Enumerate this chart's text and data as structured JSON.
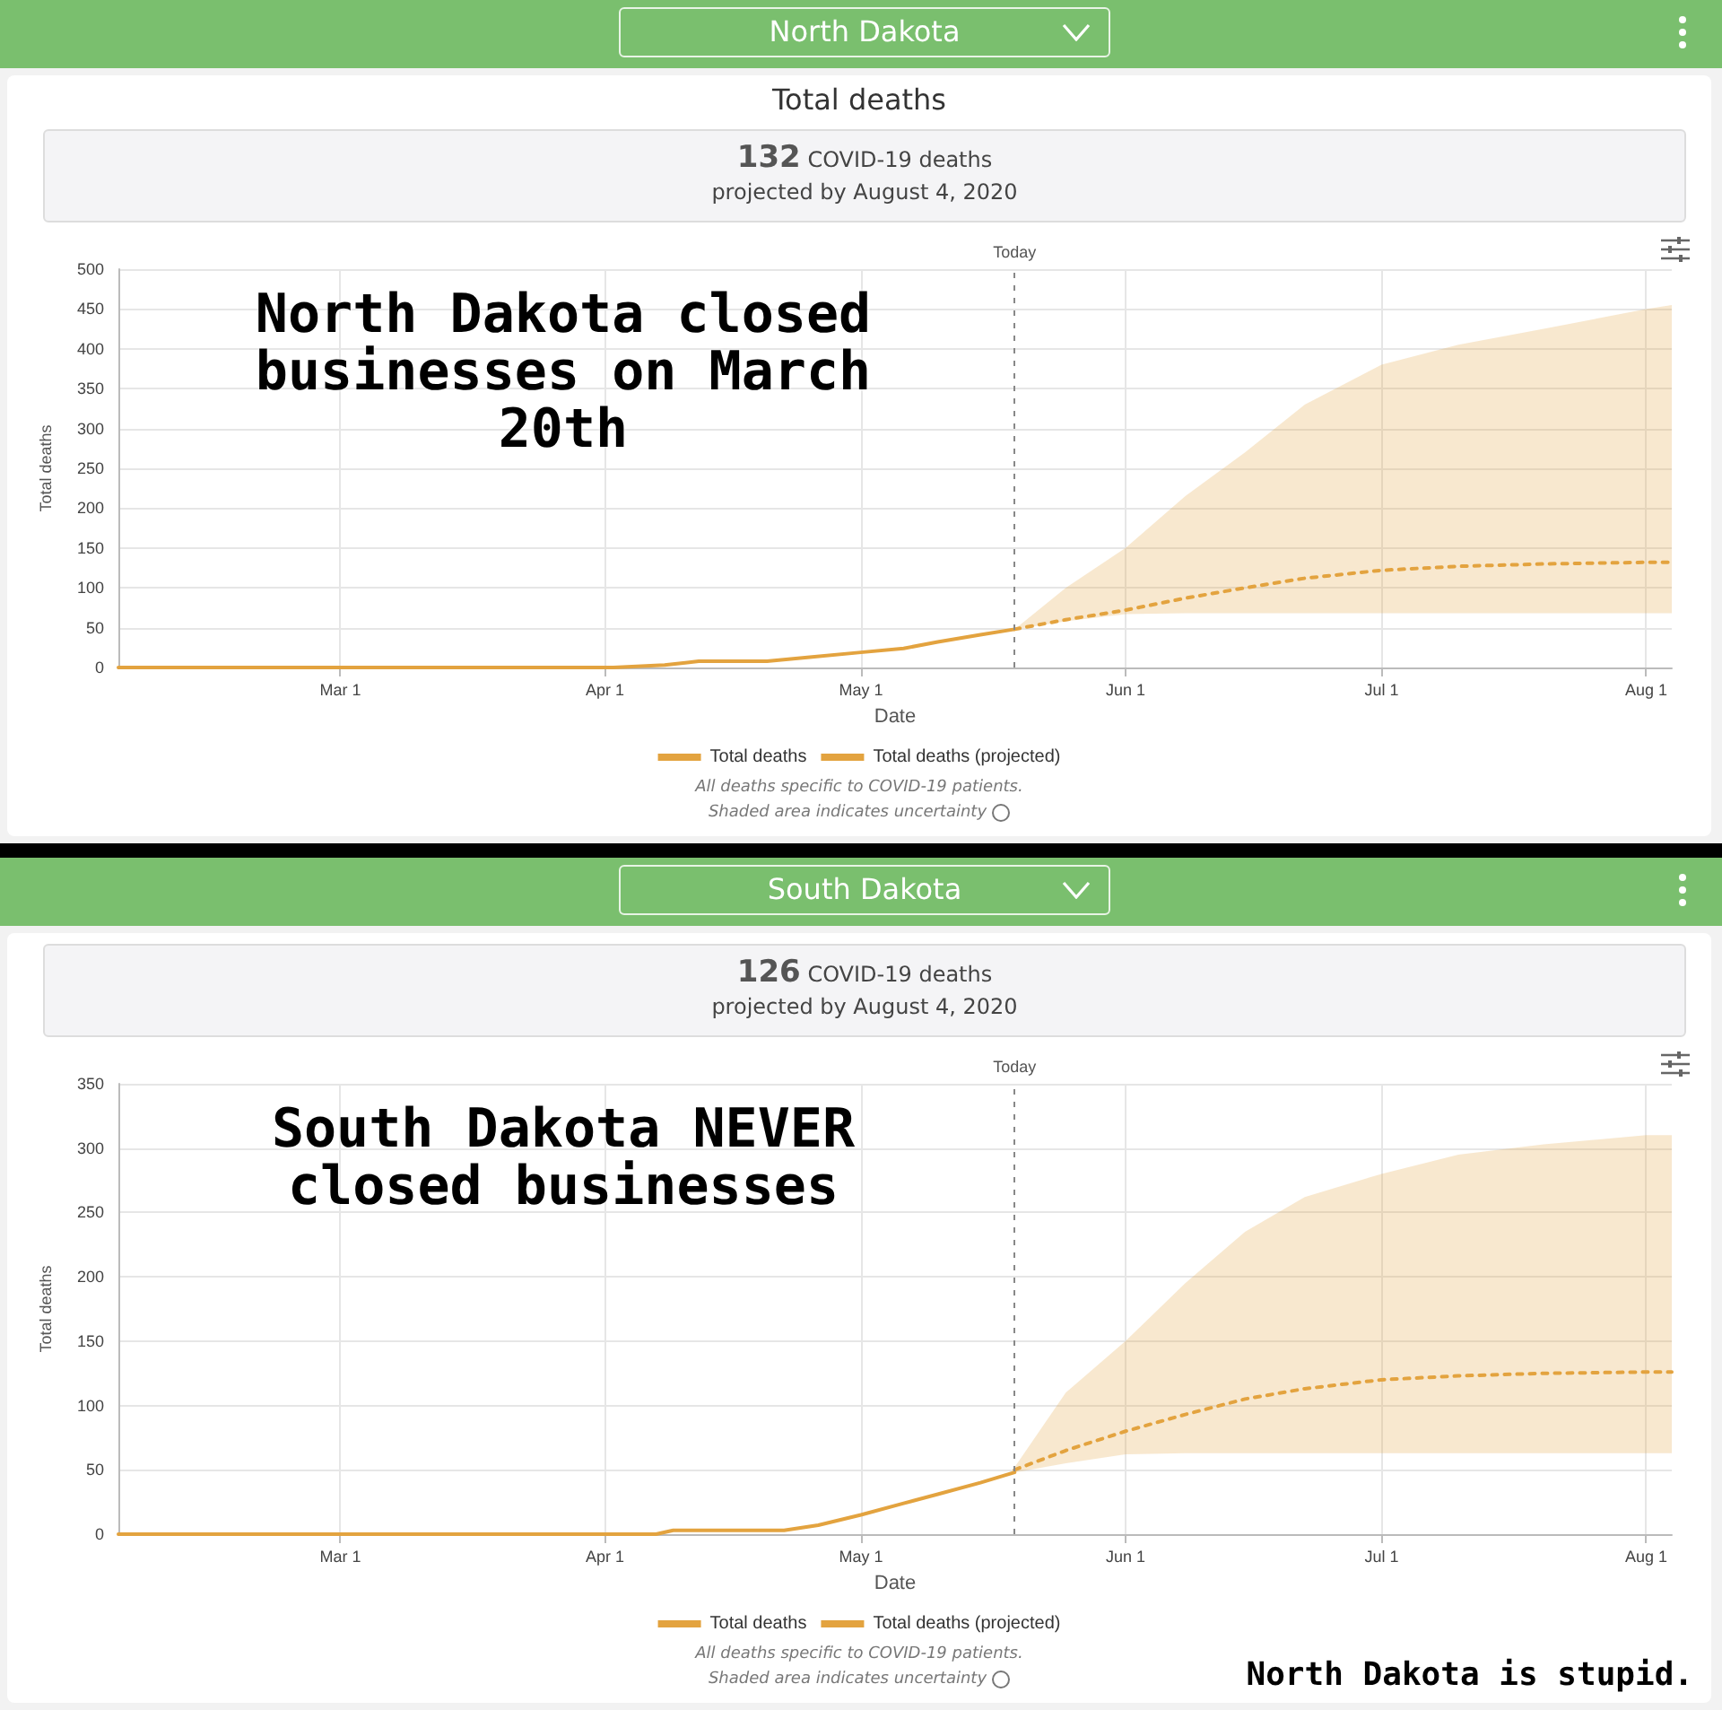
{
  "chart_data": [
    {
      "type": "line",
      "title": "Total deaths",
      "subtitle": "132 COVID-19 deaths\nprojected by August 4, 2020",
      "xlabel": "Date",
      "ylabel": "Total deaths",
      "annotations": [
        "North Dakota",
        "North Dakota closed businesses on March 20th",
        "All deaths specific to COVID-19 patients.",
        "Shaded area indicates uncertainty"
      ],
      "xlim": [
        "2020-02-04",
        "2020-08-04"
      ],
      "xticks": [
        {
          "value": "2020-03-01",
          "label": "Mar 1"
        },
        {
          "value": "2020-04-01",
          "label": "Apr 1"
        },
        {
          "value": "2020-05-01",
          "label": "May 1"
        },
        {
          "value": "2020-06-01",
          "label": "Jun 1"
        },
        {
          "value": "2020-07-01",
          "label": "Jul 1"
        },
        {
          "value": "2020-08-01",
          "label": "Aug 1"
        }
      ],
      "ylim": [
        0,
        500
      ],
      "yticks": [
        0,
        50,
        100,
        150,
        200,
        250,
        300,
        350,
        400,
        450,
        500
      ],
      "grid": true,
      "legend": "bottom",
      "marker": "none",
      "ref_lines": [
        {
          "axis": "x",
          "value": "2020-05-19",
          "label": "Today",
          "color": "#888888",
          "line_style": "dashed"
        }
      ],
      "series": [
        {
          "name": "Total deaths",
          "color": "#e3a33f",
          "line_style": "solid",
          "x": [
            "2020-02-04",
            "2020-03-20",
            "2020-04-02",
            "2020-04-08",
            "2020-04-12",
            "2020-04-20",
            "2020-04-25",
            "2020-05-01",
            "2020-05-06",
            "2020-05-10",
            "2020-05-15",
            "2020-05-19"
          ],
          "values": [
            0,
            0,
            0,
            3,
            8,
            8,
            13,
            19,
            24,
            32,
            41,
            48
          ]
        },
        {
          "name": "Total deaths (projected)",
          "color": "#e3a33f",
          "line_style": "dashed",
          "x": [
            "2020-05-19",
            "2020-05-25",
            "2020-06-01",
            "2020-06-08",
            "2020-06-15",
            "2020-06-22",
            "2020-07-01",
            "2020-07-10",
            "2020-07-20",
            "2020-08-01",
            "2020-08-04"
          ],
          "values": [
            48,
            60,
            72,
            87,
            100,
            112,
            122,
            127,
            130,
            132,
            132
          ],
          "lower": [
            48,
            58,
            67,
            68,
            68,
            68,
            68,
            68,
            68,
            68,
            68
          ],
          "upper": [
            48,
            100,
            150,
            215,
            270,
            330,
            380,
            405,
            425,
            450,
            455
          ]
        }
      ]
    },
    {
      "type": "line",
      "title": null,
      "subtitle": "126 COVID-19 deaths\nprojected by August 4, 2020",
      "xlabel": "Date",
      "ylabel": "Total deaths",
      "annotations": [
        "South Dakota",
        "South Dakota NEVER closed businesses",
        "All deaths specific to COVID-19 patients.",
        "Shaded area indicates uncertainty",
        "North Dakota is stupid."
      ],
      "xlim": [
        "2020-02-04",
        "2020-08-04"
      ],
      "xticks": [
        {
          "value": "2020-03-01",
          "label": "Mar 1"
        },
        {
          "value": "2020-04-01",
          "label": "Apr 1"
        },
        {
          "value": "2020-05-01",
          "label": "May 1"
        },
        {
          "value": "2020-06-01",
          "label": "Jun 1"
        },
        {
          "value": "2020-07-01",
          "label": "Jul 1"
        },
        {
          "value": "2020-08-01",
          "label": "Aug 1"
        }
      ],
      "ylim": [
        0,
        350
      ],
      "yticks": [
        0,
        50,
        100,
        150,
        200,
        250,
        300,
        350
      ],
      "grid": true,
      "legend": "bottom",
      "marker": "none",
      "ref_lines": [
        {
          "axis": "x",
          "value": "2020-05-19",
          "label": "Today",
          "color": "#888888",
          "line_style": "dashed"
        }
      ],
      "series": [
        {
          "name": "Total deaths",
          "color": "#e3a33f",
          "line_style": "solid",
          "x": [
            "2020-02-04",
            "2020-03-20",
            "2020-04-07",
            "2020-04-09",
            "2020-04-22",
            "2020-04-26",
            "2020-05-01",
            "2020-05-06",
            "2020-05-10",
            "2020-05-15",
            "2020-05-19"
          ],
          "values": [
            0,
            0,
            0,
            3,
            3,
            7,
            15,
            24,
            31,
            40,
            48
          ]
        },
        {
          "name": "Total deaths (projected)",
          "color": "#e3a33f",
          "line_style": "dashed",
          "x": [
            "2020-05-19",
            "2020-05-25",
            "2020-06-01",
            "2020-06-08",
            "2020-06-15",
            "2020-06-22",
            "2020-07-01",
            "2020-07-10",
            "2020-07-20",
            "2020-08-01",
            "2020-08-04"
          ],
          "values": [
            50,
            65,
            80,
            93,
            105,
            113,
            120,
            123,
            125,
            126,
            126
          ],
          "lower": [
            48,
            55,
            62,
            63,
            63,
            63,
            63,
            63,
            63,
            63,
            63
          ],
          "upper": [
            52,
            110,
            150,
            195,
            235,
            262,
            280,
            295,
            303,
            310,
            310
          ]
        }
      ]
    }
  ]
}
